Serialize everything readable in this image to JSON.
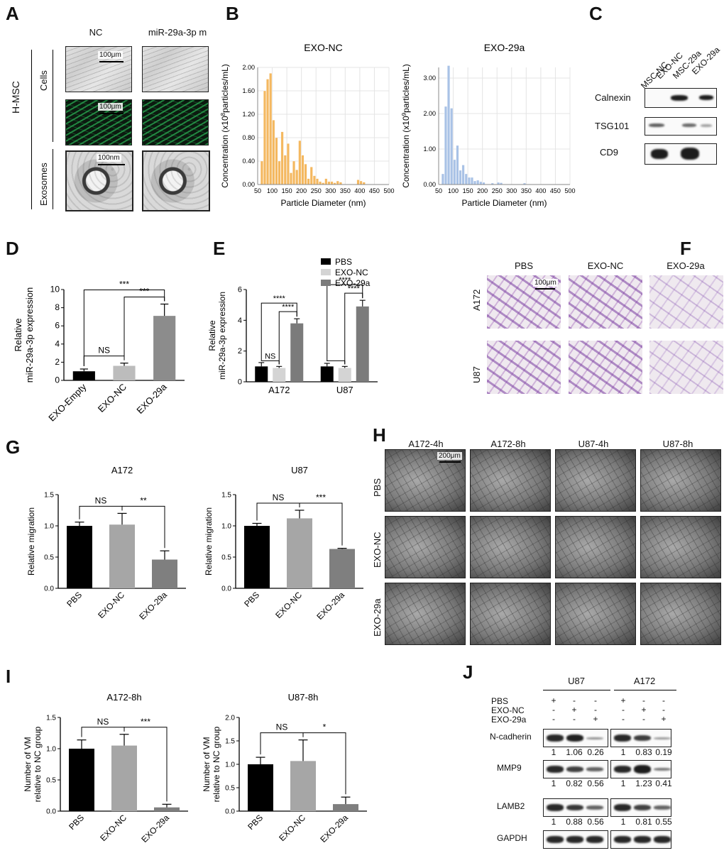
{
  "panels": {
    "A": "A",
    "B": "B",
    "C": "C",
    "D": "D",
    "E": "E",
    "F": "F",
    "G": "G",
    "H": "H",
    "I": "I",
    "J": "J"
  },
  "panel_a": {
    "columns": [
      "NC",
      "miR-29a-3p m"
    ],
    "group_label": "H-MSC",
    "rows": [
      "Cells",
      "Exosomes"
    ],
    "scale_cells": "100μm",
    "scale_fluo": "100μm",
    "scale_exo": "100nm"
  },
  "panel_c": {
    "lanes": [
      "MSC-NC",
      "EXO-NC",
      "MSC-29a",
      "EXO-29a"
    ],
    "markers": [
      "Calnexin",
      "TSG101",
      "CD9"
    ]
  },
  "panel_f": {
    "columns": [
      "PBS",
      "EXO-NC",
      "EXO-29a"
    ],
    "rows": [
      "A172",
      "U87"
    ],
    "scale": "100μm"
  },
  "panel_h": {
    "columns": [
      "A172-4h",
      "A172-8h",
      "U87-4h",
      "U87-8h"
    ],
    "rows": [
      "PBS",
      "EXO-NC",
      "EXO-29a"
    ],
    "scale": "200μm"
  },
  "panel_j": {
    "cell_lines": [
      "U87",
      "A172"
    ],
    "treatments": [
      {
        "name": "PBS",
        "marks": [
          "+",
          "-",
          "-",
          "+",
          "-",
          "-"
        ]
      },
      {
        "name": "EXO-NC",
        "marks": [
          "-",
          "+",
          "-",
          "-",
          "+",
          "-"
        ]
      },
      {
        "name": "EXO-29a",
        "marks": [
          "-",
          "-",
          "+",
          "-",
          "-",
          "+"
        ]
      }
    ],
    "proteins": [
      {
        "name": "N-cadherin",
        "values": [
          "1",
          "1.06",
          "0.26",
          "1",
          "0.83",
          "0.19"
        ],
        "levels": [
          1,
          1.06,
          0.26,
          1,
          0.83,
          0.19
        ]
      },
      {
        "name": "MMP9",
        "values": [
          "1",
          "0.82",
          "0.56",
          "1",
          "1.23",
          "0.41"
        ],
        "levels": [
          1,
          0.82,
          0.56,
          1,
          1.23,
          0.41
        ]
      },
      {
        "name": "LAMB2",
        "values": [
          "1",
          "0.88",
          "0.56",
          "1",
          "0.81",
          "0.55"
        ],
        "levels": [
          1,
          0.88,
          0.56,
          1,
          0.81,
          0.55
        ]
      },
      {
        "name": "GAPDH",
        "values": [],
        "levels": [
          1,
          1,
          1,
          1,
          1,
          1
        ]
      }
    ]
  },
  "colors": {
    "orange": "#f4b860",
    "blue": "#a9c2e6",
    "black": "#000000",
    "light_gray": "#d4d4d4",
    "mid_gray": "#9d9d9d",
    "dark_gray": "#7b7b7b"
  },
  "chart_data": [
    {
      "id": "B1",
      "type": "bar",
      "title": "EXO-NC",
      "xlabel": "Particle Diameter (nm)",
      "ylabel_main": "Concentration (x10",
      "ylabel_sup": "8",
      "ylabel_end": "particles/mL)",
      "xlim": [
        50,
        500
      ],
      "ylim": [
        0,
        2.0
      ],
      "xticks": [
        "50",
        "100",
        "150",
        "200",
        "250",
        "300",
        "350",
        "400",
        "450",
        "500"
      ],
      "yticks": [
        "0.00",
        "0.40",
        "0.80",
        "1.20",
        "1.60",
        "2.00"
      ],
      "ytick_values": [
        0,
        0.4,
        0.8,
        1.2,
        1.6,
        2.0
      ],
      "bin_width": 10,
      "bin_starts": [
        60,
        70,
        80,
        90,
        100,
        110,
        120,
        130,
        140,
        150,
        160,
        170,
        180,
        190,
        200,
        210,
        220,
        230,
        240,
        250,
        260,
        270,
        280,
        290,
        300,
        310,
        320,
        330,
        390,
        400,
        410
      ],
      "values": [
        0.4,
        1.6,
        1.8,
        1.9,
        1.1,
        0.8,
        0.4,
        0.9,
        0.5,
        0.7,
        0.2,
        0.4,
        0.25,
        0.75,
        0.5,
        0.35,
        0.1,
        0.3,
        0.15,
        0.1,
        0.05,
        0.03,
        0.1,
        0.05,
        0.05,
        0.03,
        0.06,
        0.04,
        0.08,
        0.06,
        0.04
      ]
    },
    {
      "id": "B2",
      "type": "bar",
      "title": "EXO-29a",
      "xlabel": "Particle Diameter (nm)",
      "ylabel_main": "Concentration (x10",
      "ylabel_sup": "9",
      "ylabel_end": "particles/mL)",
      "xlim": [
        50,
        500
      ],
      "ylim": [
        0,
        3.3
      ],
      "xticks": [
        "50",
        "100",
        "150",
        "200",
        "250",
        "300",
        "350",
        "400",
        "450",
        "500"
      ],
      "yticks": [
        "0.00",
        "1.00",
        "2.00",
        "3.00"
      ],
      "ytick_values": [
        0,
        1.0,
        2.0,
        3.0
      ],
      "bin_width": 10,
      "bin_starts": [
        60,
        70,
        80,
        90,
        100,
        110,
        120,
        130,
        140,
        150,
        160,
        170,
        180,
        190,
        200,
        230,
        250,
        260,
        340
      ],
      "values": [
        0.3,
        2.2,
        3.35,
        2.15,
        0.7,
        1.1,
        0.4,
        0.55,
        0.3,
        0.2,
        0.2,
        0.1,
        0.12,
        0.08,
        0.06,
        0.04,
        0.06,
        0.05,
        0.04
      ]
    },
    {
      "id": "D",
      "type": "bar",
      "ylabel": "Relative\nmiR-29a-3p expression",
      "categories": [
        "EXO-Empty",
        "EXO-NC",
        "EXO-29a"
      ],
      "values": [
        1.0,
        1.6,
        7.1
      ],
      "errors": [
        0.25,
        0.3,
        1.3
      ],
      "colors": [
        "#000000",
        "#bcbcbc",
        "#8c8c8c"
      ],
      "ylim": [
        0,
        10
      ],
      "yticks": [
        "0",
        "2",
        "4",
        "6",
        "8",
        "10"
      ],
      "ytick_values": [
        0,
        2,
        4,
        6,
        8,
        10
      ],
      "significance": [
        {
          "from": 0,
          "to": 1,
          "label": "NS"
        },
        {
          "from": 1,
          "to": 2,
          "label": "***"
        },
        {
          "from": 0,
          "to": 2,
          "label": "***"
        }
      ]
    },
    {
      "id": "E",
      "type": "bar",
      "ylabel": "Relative\nmiR-29a-3p expression",
      "categories": [
        "A172",
        "U87"
      ],
      "series": [
        {
          "name": "PBS",
          "values": [
            1.0,
            1.0
          ],
          "errors": [
            0.25,
            0.2
          ],
          "color": "#000000"
        },
        {
          "name": "EXO-NC",
          "values": [
            0.9,
            0.9
          ],
          "errors": [
            0.1,
            0.1
          ],
          "color": "#d4d4d4"
        },
        {
          "name": "EXO-29a",
          "values": [
            3.8,
            4.9
          ],
          "errors": [
            0.3,
            0.4
          ],
          "color": "#7b7b7b"
        }
      ],
      "ylim": [
        0,
        6
      ],
      "yticks": [
        "0",
        "2",
        "4",
        "6"
      ],
      "ytick_values": [
        0,
        2,
        4,
        6
      ],
      "significance": [
        {
          "group": 0,
          "from": 0,
          "to": 1,
          "label": "NS"
        },
        {
          "group": 0,
          "from": 1,
          "to": 2,
          "label": "****"
        },
        {
          "group": 0,
          "from": 0,
          "to": 2,
          "label": "****"
        },
        {
          "group": 1,
          "from": 0,
          "to": 1,
          "label": ""
        },
        {
          "group": 1,
          "from": 1,
          "to": 2,
          "label": "****"
        },
        {
          "group": 1,
          "from": 0,
          "to": 2,
          "label": "****"
        }
      ]
    },
    {
      "id": "G1",
      "type": "bar",
      "title": "A172",
      "ylabel": "Relative migration",
      "categories": [
        "PBS",
        "EXO-NC",
        "EXO-29a"
      ],
      "values": [
        1.0,
        1.02,
        0.46
      ],
      "errors": [
        0.06,
        0.18,
        0.14
      ],
      "colors": [
        "#000000",
        "#a6a6a6",
        "#7f7f7f"
      ],
      "ylim": [
        0,
        1.5
      ],
      "yticks": [
        "0.0",
        "0.5",
        "1.0",
        "1.5"
      ],
      "ytick_values": [
        0,
        0.5,
        1.0,
        1.5
      ],
      "significance": [
        {
          "from": 0,
          "to": 1,
          "label": "NS"
        },
        {
          "from": 1,
          "to": 2,
          "label": "**"
        }
      ]
    },
    {
      "id": "G2",
      "type": "bar",
      "title": "U87",
      "ylabel": "Relative migration",
      "categories": [
        "PBS",
        "EXO-NC",
        "EXO-29a"
      ],
      "values": [
        1.0,
        1.12,
        0.63
      ],
      "errors": [
        0.04,
        0.13,
        0.01
      ],
      "colors": [
        "#000000",
        "#a6a6a6",
        "#7f7f7f"
      ],
      "ylim": [
        0,
        1.5
      ],
      "yticks": [
        "0.0",
        "0.5",
        "1.0",
        "1.5"
      ],
      "ytick_values": [
        0,
        0.5,
        1.0,
        1.5
      ],
      "significance": [
        {
          "from": 0,
          "to": 1,
          "label": "NS"
        },
        {
          "from": 1,
          "to": 2,
          "label": "***"
        }
      ]
    },
    {
      "id": "I1",
      "type": "bar",
      "title": "A172-8h",
      "ylabel": "Number of VM\nrelative to NC group",
      "categories": [
        "PBS",
        "EXO-NC",
        "EXO-29a"
      ],
      "values": [
        1.0,
        1.05,
        0.06
      ],
      "errors": [
        0.14,
        0.18,
        0.05
      ],
      "colors": [
        "#000000",
        "#a6a6a6",
        "#7f7f7f"
      ],
      "ylim": [
        0,
        1.5
      ],
      "yticks": [
        "0.0",
        "0.5",
        "1.0",
        "1.5"
      ],
      "ytick_values": [
        0,
        0.5,
        1.0,
        1.5
      ],
      "significance": [
        {
          "from": 0,
          "to": 1,
          "label": "NS"
        },
        {
          "from": 1,
          "to": 2,
          "label": "***"
        }
      ]
    },
    {
      "id": "I2",
      "type": "bar",
      "title": "U87-8h",
      "ylabel": "Number of VM\nrelative to NC group",
      "categories": [
        "PBS",
        "EXO-NC",
        "EXO-29a"
      ],
      "values": [
        1.0,
        1.07,
        0.15
      ],
      "errors": [
        0.15,
        0.45,
        0.15
      ],
      "colors": [
        "#000000",
        "#a6a6a6",
        "#7f7f7f"
      ],
      "ylim": [
        0,
        2.0
      ],
      "yticks": [
        "0.0",
        "0.5",
        "1.0",
        "1.5",
        "2.0"
      ],
      "ytick_values": [
        0,
        0.5,
        1.0,
        1.5,
        2.0
      ],
      "significance": [
        {
          "from": 0,
          "to": 1,
          "label": "NS"
        },
        {
          "from": 1,
          "to": 2,
          "label": "*"
        }
      ]
    }
  ]
}
